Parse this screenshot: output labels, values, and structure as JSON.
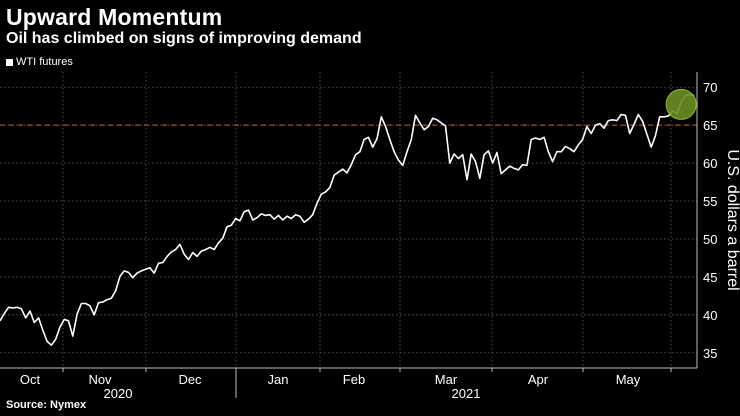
{
  "title": "Upward Momentum",
  "subtitle": "Oil has climbed on signs of improving demand",
  "source": "Source: Nymex",
  "chart_data": {
    "type": "line",
    "title": "Upward Momentum",
    "subtitle": "Oil has climbed on signs of improving demand",
    "ylabel": "U.S. dollars a barrel",
    "ylim": [
      33,
      72
    ],
    "yticks": [
      35,
      40,
      45,
      50,
      55,
      60,
      65,
      70
    ],
    "y_axis_position": "right",
    "grid": "dotted vertical and horizontal",
    "legend_position": "top-left",
    "month_ticks": [
      "Oct",
      "Nov",
      "Dec",
      "Jan",
      "Feb",
      "Mar",
      "Apr",
      "May"
    ],
    "year_labels": [
      "2020",
      "2021"
    ],
    "reference_line": {
      "y": 65,
      "color": "#c8643c",
      "style": "dashed"
    },
    "highlight_marker": {
      "at": "end of series",
      "color": "#6b8e23"
    },
    "colors": {
      "line": "#ffffff",
      "background": "#000000",
      "marker": "#6b8e23"
    },
    "series": [
      {
        "name": "WTI futures",
        "values": [
          39.2,
          40.2,
          41.0,
          40.9,
          41.0,
          40.8,
          39.6,
          40.5,
          39.0,
          39.6,
          38.0,
          36.5,
          36.0,
          36.8,
          38.4,
          39.4,
          39.2,
          37.2,
          40.1,
          41.5,
          41.5,
          41.2,
          40.0,
          41.6,
          41.7,
          42.0,
          42.2,
          43.2,
          45.1,
          45.8,
          45.6,
          44.9,
          45.5,
          45.8,
          46.0,
          46.2,
          45.5,
          46.8,
          46.9,
          47.7,
          48.3,
          48.6,
          49.3,
          48.0,
          47.3,
          48.2,
          47.7,
          48.4,
          48.6,
          48.9,
          48.6,
          49.5,
          50.1,
          51.6,
          51.8,
          52.7,
          52.4,
          53.6,
          53.8,
          52.5,
          52.8,
          53.3,
          53.1,
          53.2,
          52.6,
          53.1,
          52.5,
          53.0,
          52.7,
          53.2,
          53.0,
          52.2,
          52.6,
          53.2,
          54.7,
          55.9,
          56.2,
          56.8,
          58.4,
          58.8,
          59.2,
          58.7,
          59.8,
          61.1,
          61.5,
          63.1,
          63.4,
          62.1,
          63.2,
          66.1,
          64.8,
          63.1,
          61.5,
          60.4,
          59.7,
          61.5,
          63.1,
          66.3,
          65.3,
          64.4,
          64.8,
          65.9,
          65.7,
          65.3,
          64.9,
          60.0,
          61.2,
          60.6,
          61.1,
          57.8,
          61.2,
          60.2,
          58.0,
          61.1,
          61.6,
          60.0,
          61.4,
          58.6,
          59.1,
          59.6,
          59.3,
          59.1,
          59.8,
          59.7,
          63.1,
          63.3,
          63.1,
          63.4,
          61.5,
          60.2,
          61.5,
          61.5,
          62.2,
          61.9,
          61.5,
          62.4,
          63.1,
          64.8,
          63.9,
          65.0,
          65.2,
          64.6,
          65.6,
          65.7,
          65.6,
          66.4,
          66.3,
          63.9,
          65.1,
          66.4,
          65.5,
          63.8,
          62.1,
          63.6,
          66.1,
          66.1,
          66.2,
          66.9,
          66.5,
          68.0,
          68.9,
          69.0,
          68.9
        ]
      }
    ]
  }
}
